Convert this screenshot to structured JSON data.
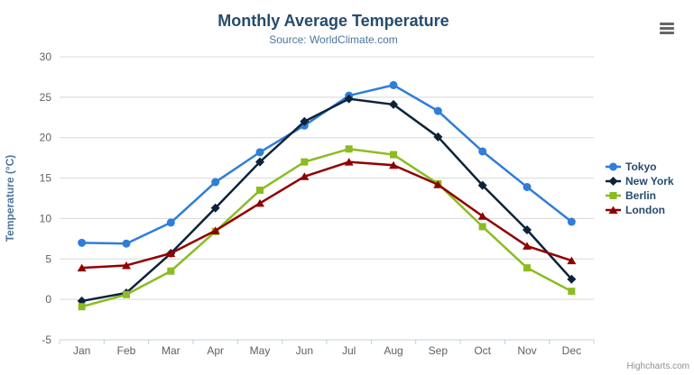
{
  "chart_data": {
    "type": "line",
    "title": "Monthly Average Temperature",
    "subtitle": "Source: WorldClimate.com",
    "xlabel": "",
    "ylabel": "Temperature (°C)",
    "categories": [
      "Jan",
      "Feb",
      "Mar",
      "Apr",
      "May",
      "Jun",
      "Jul",
      "Aug",
      "Sep",
      "Oct",
      "Nov",
      "Dec"
    ],
    "ylim": [
      -5,
      30
    ],
    "yticks": [
      -5,
      0,
      5,
      10,
      15,
      20,
      25,
      30
    ],
    "grid": true,
    "legend_position": "right",
    "series": [
      {
        "name": "Tokyo",
        "color": "#2f7ed8",
        "marker": "circle",
        "values": [
          7.0,
          6.9,
          9.5,
          14.5,
          18.2,
          21.5,
          25.2,
          26.5,
          23.3,
          18.3,
          13.9,
          9.6
        ]
      },
      {
        "name": "New York",
        "color": "#0d233a",
        "marker": "diamond",
        "values": [
          -0.2,
          0.8,
          5.7,
          11.3,
          17.0,
          22.0,
          24.8,
          24.1,
          20.1,
          14.1,
          8.6,
          2.5
        ]
      },
      {
        "name": "Berlin",
        "color": "#8bbc21",
        "marker": "square",
        "values": [
          -0.9,
          0.6,
          3.5,
          8.4,
          13.5,
          17.0,
          18.6,
          17.9,
          14.3,
          9.0,
          3.9,
          1.0
        ]
      },
      {
        "name": "London",
        "color": "#910000",
        "marker": "triangle",
        "values": [
          3.9,
          4.2,
          5.7,
          8.5,
          11.9,
          15.2,
          17.0,
          16.6,
          14.2,
          10.3,
          6.6,
          4.8
        ]
      }
    ]
  },
  "export_menu": {
    "icon": "hamburger-menu-icon"
  },
  "credits": {
    "label": "Highcharts.com"
  },
  "colors": {
    "title": "#274b6d",
    "subtitle": "#4d759e",
    "axis_title": "#4d759e",
    "axis_label": "#606060",
    "legend_text": "#274b6d",
    "gridline": "#d8d8d8",
    "axis_line": "#c0d0e0",
    "credits": "#909090",
    "menu_icon": "#666666"
  }
}
